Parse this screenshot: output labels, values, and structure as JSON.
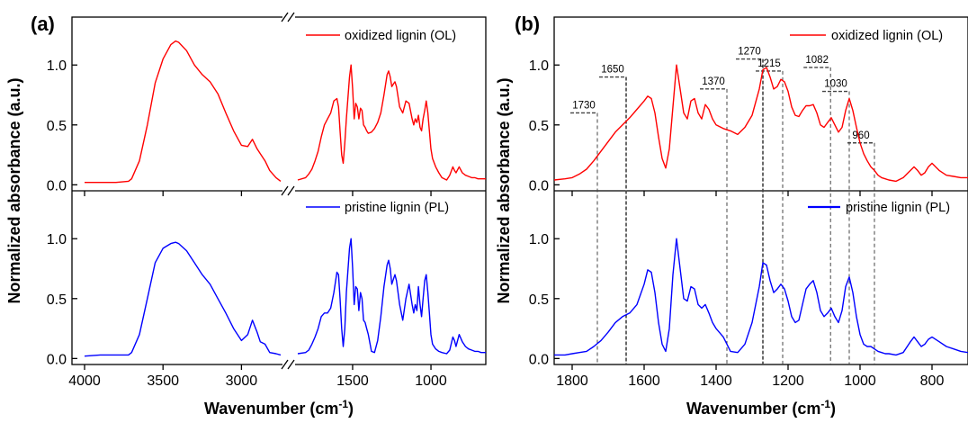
{
  "chart_data": [
    {
      "panel_label": "(a)",
      "type": "line",
      "xlabel_main": "Wavenumber (cm",
      "xlabel_sup": "-1",
      "xlabel_close": ")",
      "ylabel": "Normalized absorbance (a.u.)",
      "x_reversed": true,
      "x_break": [
        2750,
        1850
      ],
      "xlim": [
        4000,
        650
      ],
      "xticks": [
        4000,
        3500,
        3000,
        1500,
        1000
      ],
      "ylim": [
        -0.05,
        1.4
      ],
      "yticks": [
        "0.0",
        "0.5",
        "1.0"
      ],
      "series": [
        {
          "name": "oxidized lignin (OL)",
          "color": "#ff0000",
          "x": [
            4000,
            3900,
            3800,
            3720,
            3700,
            3650,
            3600,
            3550,
            3500,
            3450,
            3420,
            3400,
            3350,
            3300,
            3250,
            3200,
            3150,
            3100,
            3050,
            3000,
            2960,
            2930,
            2900,
            2880,
            2850,
            2820,
            2780,
            2750,
            1850,
            1800,
            1780,
            1760,
            1740,
            1720,
            1700,
            1680,
            1660,
            1640,
            1620,
            1600,
            1590,
            1580,
            1570,
            1560,
            1550,
            1540,
            1520,
            1510,
            1500,
            1490,
            1480,
            1470,
            1460,
            1450,
            1440,
            1430,
            1420,
            1410,
            1400,
            1380,
            1360,
            1340,
            1320,
            1300,
            1280,
            1270,
            1260,
            1250,
            1240,
            1230,
            1220,
            1200,
            1180,
            1160,
            1140,
            1120,
            1110,
            1100,
            1090,
            1080,
            1070,
            1060,
            1050,
            1040,
            1030,
            1020,
            1010,
            1000,
            990,
            970,
            950,
            930,
            900,
            880,
            860,
            850,
            840,
            820,
            800,
            780,
            760,
            740,
            720,
            700,
            680,
            660,
            650
          ],
          "y": [
            0.02,
            0.02,
            0.02,
            0.03,
            0.05,
            0.2,
            0.5,
            0.85,
            1.05,
            1.17,
            1.2,
            1.19,
            1.12,
            1.0,
            0.92,
            0.86,
            0.76,
            0.6,
            0.45,
            0.33,
            0.32,
            0.38,
            0.3,
            0.26,
            0.2,
            0.12,
            0.06,
            0.03,
            0.04,
            0.06,
            0.09,
            0.13,
            0.2,
            0.28,
            0.4,
            0.5,
            0.55,
            0.6,
            0.7,
            0.72,
            0.65,
            0.45,
            0.25,
            0.18,
            0.35,
            0.55,
            0.9,
            1.0,
            0.8,
            0.55,
            0.68,
            0.65,
            0.55,
            0.64,
            0.62,
            0.5,
            0.48,
            0.45,
            0.43,
            0.44,
            0.47,
            0.52,
            0.6,
            0.75,
            0.92,
            0.95,
            0.9,
            0.82,
            0.84,
            0.86,
            0.82,
            0.65,
            0.6,
            0.7,
            0.68,
            0.55,
            0.5,
            0.55,
            0.52,
            0.58,
            0.48,
            0.45,
            0.55,
            0.62,
            0.7,
            0.6,
            0.45,
            0.3,
            0.22,
            0.15,
            0.1,
            0.06,
            0.04,
            0.08,
            0.15,
            0.12,
            0.1,
            0.15,
            0.1,
            0.08,
            0.07,
            0.06,
            0.06,
            0.05,
            0.05,
            0.05,
            0.05
          ]
        },
        {
          "name": "pristine lignin (PL)",
          "color": "#0000ff",
          "x": [
            4000,
            3900,
            3800,
            3720,
            3700,
            3650,
            3600,
            3550,
            3500,
            3450,
            3420,
            3400,
            3350,
            3300,
            3250,
            3200,
            3150,
            3100,
            3050,
            3000,
            2960,
            2930,
            2900,
            2880,
            2850,
            2820,
            2780,
            2750,
            1850,
            1800,
            1780,
            1760,
            1740,
            1720,
            1700,
            1680,
            1660,
            1640,
            1620,
            1600,
            1590,
            1580,
            1570,
            1560,
            1550,
            1540,
            1520,
            1510,
            1500,
            1490,
            1480,
            1470,
            1460,
            1450,
            1440,
            1430,
            1420,
            1410,
            1400,
            1380,
            1360,
            1340,
            1320,
            1300,
            1280,
            1270,
            1260,
            1250,
            1240,
            1230,
            1220,
            1200,
            1180,
            1160,
            1140,
            1120,
            1110,
            1100,
            1090,
            1080,
            1070,
            1060,
            1050,
            1040,
            1030,
            1020,
            1010,
            1000,
            990,
            970,
            950,
            930,
            900,
            880,
            860,
            850,
            840,
            820,
            800,
            780,
            760,
            740,
            720,
            700,
            680,
            660,
            650
          ],
          "y": [
            0.02,
            0.03,
            0.03,
            0.03,
            0.05,
            0.2,
            0.5,
            0.8,
            0.92,
            0.96,
            0.97,
            0.96,
            0.9,
            0.8,
            0.7,
            0.62,
            0.5,
            0.38,
            0.25,
            0.15,
            0.2,
            0.32,
            0.22,
            0.14,
            0.12,
            0.05,
            0.04,
            0.03,
            0.04,
            0.05,
            0.07,
            0.12,
            0.18,
            0.25,
            0.35,
            0.38,
            0.38,
            0.42,
            0.55,
            0.72,
            0.7,
            0.5,
            0.25,
            0.1,
            0.25,
            0.55,
            0.92,
            1.0,
            0.75,
            0.45,
            0.6,
            0.58,
            0.4,
            0.55,
            0.5,
            0.32,
            0.3,
            0.25,
            0.2,
            0.06,
            0.05,
            0.15,
            0.35,
            0.6,
            0.78,
            0.82,
            0.75,
            0.62,
            0.66,
            0.7,
            0.65,
            0.45,
            0.32,
            0.5,
            0.62,
            0.45,
            0.38,
            0.45,
            0.4,
            0.6,
            0.45,
            0.35,
            0.5,
            0.65,
            0.7,
            0.55,
            0.38,
            0.2,
            0.12,
            0.08,
            0.06,
            0.05,
            0.04,
            0.07,
            0.18,
            0.15,
            0.1,
            0.2,
            0.14,
            0.1,
            0.08,
            0.07,
            0.06,
            0.06,
            0.05,
            0.05,
            0.05
          ]
        }
      ]
    },
    {
      "panel_label": "(b)",
      "type": "line",
      "xlabel_main": "Wavenumber (cm",
      "xlabel_sup": "-1",
      "xlabel_close": ")",
      "ylabel": "Normalized absorbance (a.u.)",
      "x_reversed": true,
      "xlim": [
        1850,
        700
      ],
      "xticks": [
        1800,
        1600,
        1400,
        1200,
        1000,
        800
      ],
      "ylim": [
        -0.05,
        1.4
      ],
      "yticks": [
        "0.0",
        "0.5",
        "1.0"
      ],
      "annotations": [
        {
          "x": 1730,
          "label": "1730",
          "bar_y": 0.6,
          "style": "dashed"
        },
        {
          "x": 1650,
          "label": "1650",
          "bar_y": 0.9,
          "style": "dashed"
        },
        {
          "x": 1370,
          "label": "1370",
          "bar_y": 0.8,
          "style": "dashed"
        },
        {
          "x": 1270,
          "label": "1270",
          "bar_y": 1.05,
          "style": "dashed"
        },
        {
          "x": 1215,
          "label": "1215",
          "bar_y": 0.95,
          "style": "dashed"
        },
        {
          "x": 1082,
          "label": "1082",
          "bar_y": 0.98,
          "style": "dashed"
        },
        {
          "x": 1030,
          "label": "1030",
          "bar_y": 0.78,
          "style": "dashed"
        },
        {
          "x": 960,
          "label": "960",
          "bar_y": 0.35,
          "style": "dashed"
        }
      ],
      "series": [
        {
          "name": "oxidized lignin (OL)",
          "color": "#ff0000",
          "x": [
            1850,
            1820,
            1800,
            1780,
            1760,
            1740,
            1720,
            1700,
            1680,
            1660,
            1640,
            1620,
            1600,
            1590,
            1580,
            1570,
            1560,
            1550,
            1540,
            1530,
            1520,
            1510,
            1500,
            1490,
            1480,
            1470,
            1460,
            1450,
            1440,
            1430,
            1420,
            1410,
            1400,
            1380,
            1360,
            1340,
            1320,
            1300,
            1280,
            1270,
            1260,
            1250,
            1240,
            1230,
            1220,
            1210,
            1200,
            1190,
            1180,
            1170,
            1160,
            1150,
            1140,
            1130,
            1120,
            1110,
            1100,
            1090,
            1080,
            1070,
            1060,
            1050,
            1040,
            1030,
            1020,
            1010,
            1000,
            990,
            980,
            970,
            960,
            950,
            940,
            930,
            920,
            900,
            880,
            860,
            850,
            840,
            830,
            820,
            810,
            800,
            780,
            760,
            740,
            720,
            700
          ],
          "y": [
            0.04,
            0.05,
            0.06,
            0.09,
            0.13,
            0.2,
            0.28,
            0.36,
            0.44,
            0.5,
            0.56,
            0.63,
            0.7,
            0.74,
            0.72,
            0.6,
            0.4,
            0.22,
            0.14,
            0.3,
            0.65,
            1.0,
            0.8,
            0.6,
            0.55,
            0.7,
            0.72,
            0.6,
            0.55,
            0.67,
            0.63,
            0.55,
            0.5,
            0.47,
            0.45,
            0.42,
            0.48,
            0.58,
            0.8,
            0.96,
            0.98,
            0.9,
            0.8,
            0.82,
            0.88,
            0.86,
            0.78,
            0.65,
            0.58,
            0.57,
            0.62,
            0.66,
            0.66,
            0.67,
            0.6,
            0.5,
            0.48,
            0.52,
            0.56,
            0.5,
            0.44,
            0.48,
            0.62,
            0.72,
            0.62,
            0.48,
            0.35,
            0.26,
            0.2,
            0.15,
            0.12,
            0.08,
            0.06,
            0.05,
            0.04,
            0.03,
            0.06,
            0.12,
            0.15,
            0.12,
            0.08,
            0.1,
            0.15,
            0.18,
            0.12,
            0.08,
            0.07,
            0.06,
            0.06
          ]
        },
        {
          "name": "pristine lignin (PL)",
          "color": "#0000ff",
          "x": [
            1850,
            1820,
            1800,
            1780,
            1760,
            1740,
            1720,
            1700,
            1680,
            1660,
            1640,
            1620,
            1600,
            1590,
            1580,
            1570,
            1560,
            1550,
            1540,
            1530,
            1520,
            1510,
            1500,
            1490,
            1480,
            1470,
            1460,
            1450,
            1440,
            1430,
            1420,
            1410,
            1400,
            1380,
            1360,
            1340,
            1320,
            1300,
            1280,
            1270,
            1260,
            1250,
            1240,
            1230,
            1220,
            1210,
            1200,
            1190,
            1180,
            1170,
            1160,
            1150,
            1140,
            1130,
            1120,
            1110,
            1100,
            1090,
            1080,
            1070,
            1060,
            1050,
            1040,
            1030,
            1020,
            1010,
            1000,
            990,
            980,
            970,
            960,
            950,
            940,
            930,
            920,
            900,
            880,
            860,
            850,
            840,
            830,
            820,
            810,
            800,
            780,
            760,
            740,
            720,
            700
          ],
          "y": [
            0.03,
            0.03,
            0.04,
            0.05,
            0.06,
            0.1,
            0.15,
            0.22,
            0.3,
            0.35,
            0.38,
            0.45,
            0.62,
            0.74,
            0.72,
            0.55,
            0.3,
            0.12,
            0.06,
            0.25,
            0.7,
            1.0,
            0.75,
            0.5,
            0.48,
            0.6,
            0.58,
            0.45,
            0.42,
            0.45,
            0.38,
            0.3,
            0.25,
            0.18,
            0.06,
            0.05,
            0.12,
            0.3,
            0.6,
            0.8,
            0.78,
            0.65,
            0.55,
            0.58,
            0.62,
            0.58,
            0.48,
            0.35,
            0.3,
            0.32,
            0.45,
            0.58,
            0.62,
            0.65,
            0.55,
            0.4,
            0.35,
            0.38,
            0.42,
            0.35,
            0.3,
            0.4,
            0.6,
            0.68,
            0.55,
            0.35,
            0.2,
            0.12,
            0.1,
            0.1,
            0.08,
            0.06,
            0.05,
            0.04,
            0.04,
            0.03,
            0.05,
            0.14,
            0.18,
            0.14,
            0.1,
            0.12,
            0.16,
            0.18,
            0.14,
            0.1,
            0.08,
            0.06,
            0.05
          ]
        }
      ]
    }
  ]
}
